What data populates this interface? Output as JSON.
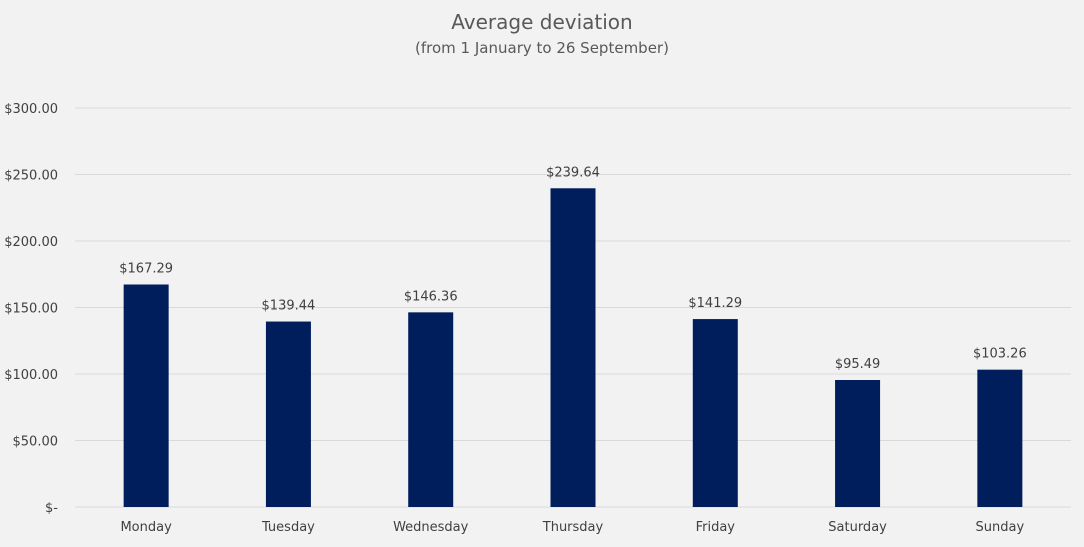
{
  "chart_data": {
    "type": "bar",
    "title": "Average deviation",
    "subtitle": "(from 1 January to 26 September)",
    "xlabel": "",
    "ylabel": "",
    "categories": [
      "Monday",
      "Tuesday",
      "Wednesday",
      "Thursday",
      "Friday",
      "Saturday",
      "Sunday"
    ],
    "values": [
      167.29,
      139.44,
      146.36,
      239.64,
      141.29,
      95.49,
      103.26
    ],
    "data_labels": [
      "$167.29",
      "$139.44",
      "$146.36",
      "$239.64",
      "$141.29",
      "$95.49",
      "$103.26"
    ],
    "ylim": [
      0,
      300
    ],
    "yticks": [
      0,
      50,
      100,
      150,
      200,
      250,
      300
    ],
    "ytick_labels": [
      "$-",
      "$50.00",
      "$100.00",
      "$150.00",
      "$200.00",
      "$250.00",
      "$300.00"
    ],
    "grid": true,
    "legend": "none",
    "colors": {
      "bar": "#001d5c",
      "grid": "#d9d9d9",
      "background": "#f2f2f2"
    }
  }
}
